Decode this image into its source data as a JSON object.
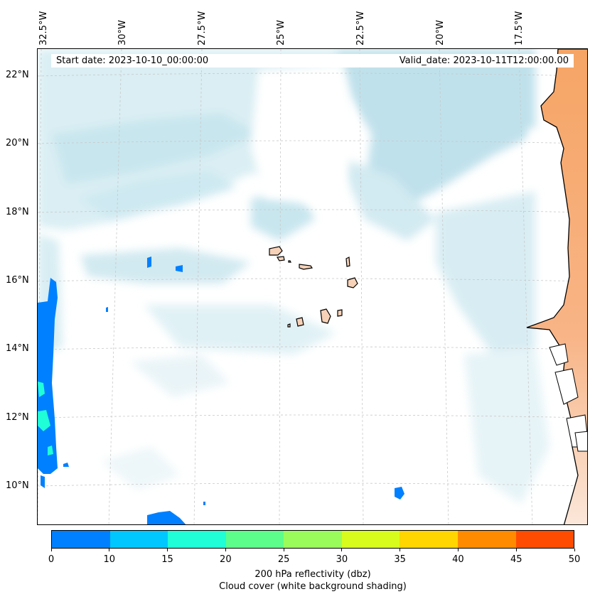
{
  "map": {
    "start_date_text": "Start date: 2023-10-10_00:00:00",
    "valid_date_text": "Valid_date: 2023-10-11T12:00:00.00",
    "lon_ticks": [
      "32.5°W",
      "30°W",
      "27.5°W",
      "25°W",
      "22.5°W",
      "20°W",
      "17.5°W"
    ],
    "lat_ticks": [
      "22°N",
      "20°N",
      "18°N",
      "16°N",
      "14°N",
      "12°N",
      "10°N"
    ],
    "colors": {
      "cloud": "#b9dfe9",
      "land": "#f6a565",
      "island_fill": "#f7d2b8",
      "coast": "#000000"
    }
  },
  "colorbar": {
    "ticks": [
      "0",
      "10",
      "15",
      "20",
      "25",
      "30",
      "35",
      "40",
      "45",
      "50"
    ],
    "colors": [
      "#0080ff",
      "#00c7ff",
      "#1ffed6",
      "#5dfd8b",
      "#9afc5a",
      "#d8fd1c",
      "#ffd600",
      "#ff8b00",
      "#ff4c00"
    ],
    "label_line1": "200 hPa reflectivity (dbz)",
    "label_line2": "Cloud cover (white background shading)"
  }
}
